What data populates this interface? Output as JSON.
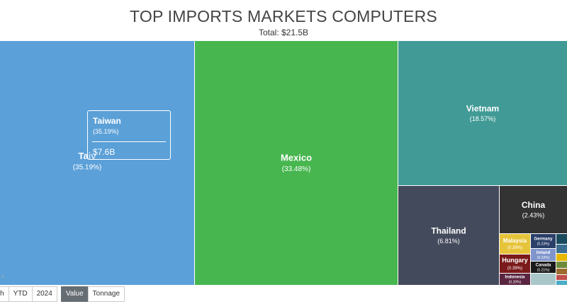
{
  "header": {
    "title": "TOP IMPORTS MARKETS COMPUTERS",
    "subtitle": "Total: $21.5B"
  },
  "tooltip": {
    "name": "Taiwan",
    "percent": "(35.19%)",
    "value": "$7.6B"
  },
  "toolbar": {
    "period_buttons": [
      {
        "label": "h",
        "active": false
      },
      {
        "label": "YTD",
        "active": false
      },
      {
        "label": "2024",
        "active": false
      }
    ],
    "measure_buttons": [
      {
        "label": "Value",
        "active": true
      },
      {
        "label": "Tonnage",
        "active": false
      }
    ]
  },
  "chart_data": {
    "type": "treemap",
    "title": "TOP IMPORTS MARKETS COMPUTERS",
    "subtitle": "Total: $21.5B",
    "tiles": [
      {
        "name": "Taiwan",
        "display_name": "Taiv",
        "percent": 35.19,
        "label": "(35.19%)",
        "color": "#5ba0d8"
      },
      {
        "name": "Mexico",
        "display_name": "Mexico",
        "percent": 33.48,
        "label": "(33.48%)",
        "color": "#47b64f"
      },
      {
        "name": "Vietnam",
        "display_name": "Vietnam",
        "percent": 18.57,
        "label": "(18.57%)",
        "color": "#419a96"
      },
      {
        "name": "Thailand",
        "display_name": "Thailand",
        "percent": 6.81,
        "label": "(6.81%)",
        "color": "#434a5b"
      },
      {
        "name": "China",
        "display_name": "China",
        "percent": 2.43,
        "label": "(2.43%)",
        "color": "#333333"
      },
      {
        "name": "Malaysia",
        "display_name": "Malaysia",
        "percent": 0.39,
        "label": "(0.39%)",
        "color": "#e6c43a"
      },
      {
        "name": "Hungary",
        "display_name": "Hungary",
        "percent": 0.39,
        "label": "(0.39%)",
        "color": "#7b1a1a"
      },
      {
        "name": "Germany",
        "display_name": "Germany",
        "percent": 0.23,
        "label": "(0.23%)",
        "color": "#2a3f69"
      },
      {
        "name": "Ireland",
        "display_name": "Ireland",
        "percent": 0.22,
        "label": "(0.22%)",
        "color": "#7f95cc"
      },
      {
        "name": "Canada",
        "display_name": "Canada",
        "percent": 0.21,
        "label": "(0.21%)",
        "color": "#1a1a1a"
      },
      {
        "name": "Indonesia",
        "display_name": "Indonesia",
        "percent": 0.2,
        "label": "(0.20%)",
        "color": "#5a2540"
      }
    ]
  }
}
